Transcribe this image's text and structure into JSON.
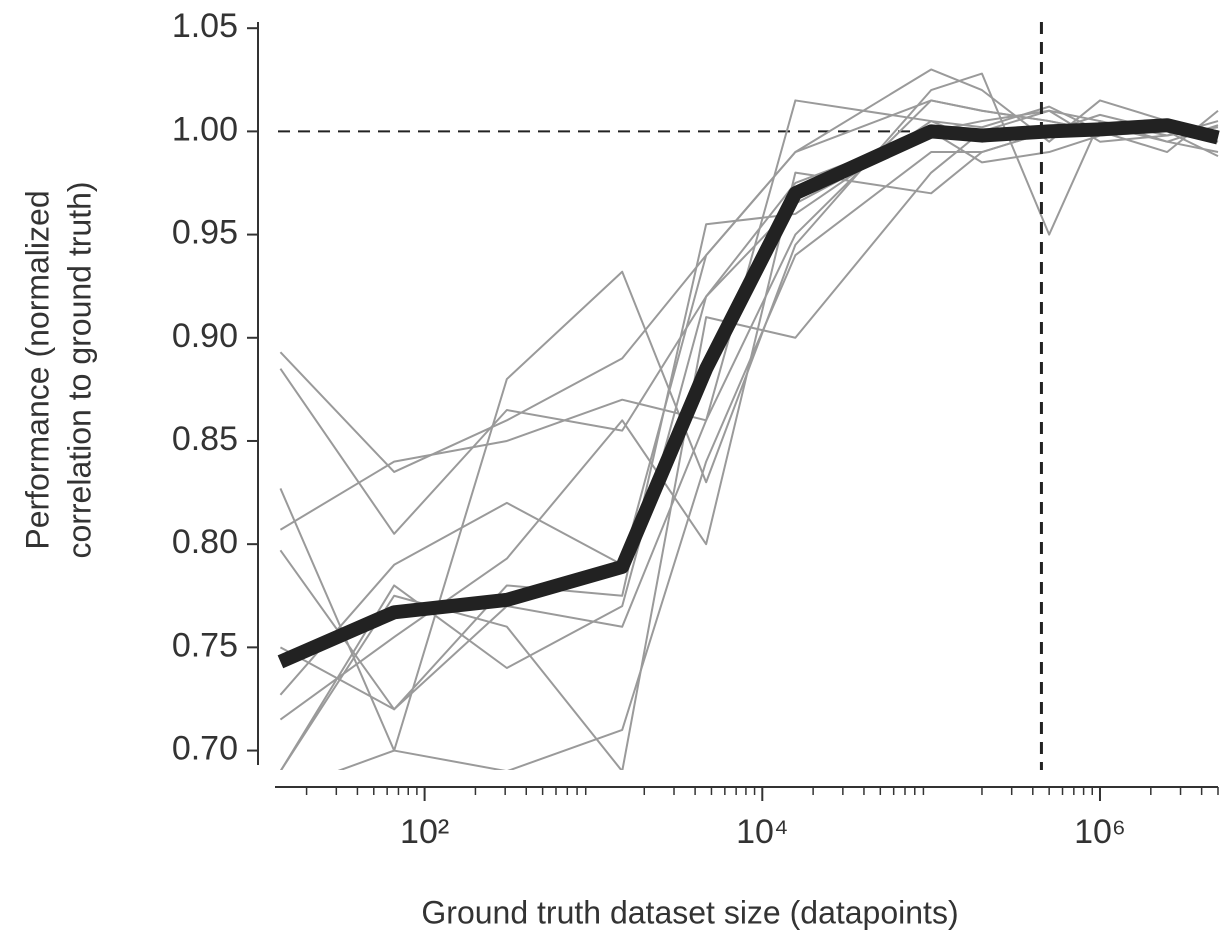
{
  "chart_data": {
    "type": "line",
    "xlabel": "Ground truth dataset size (datapoints)",
    "ylabel": [
      "Performance (normalized",
      "correlation to ground truth)"
    ],
    "xscale": "log",
    "x": [
      14,
      66,
      307,
      1480,
      4650,
      15700,
      100000,
      200000,
      500000,
      1000000,
      2500000,
      5000000
    ],
    "xlim": [
      13,
      5000000
    ],
    "ylim": [
      0.693,
      1.053
    ],
    "xticks": [
      {
        "value": 100,
        "label": "10²"
      },
      {
        "value": 10000,
        "label": "10⁴"
      },
      {
        "value": 1000000,
        "label": "10⁶"
      }
    ],
    "xminorticks": [
      20,
      30,
      40,
      50,
      60,
      70,
      80,
      90,
      200,
      300,
      400,
      500,
      600,
      700,
      800,
      900,
      2000,
      3000,
      4000,
      5000,
      6000,
      7000,
      8000,
      9000,
      20000,
      30000,
      40000,
      50000,
      60000,
      70000,
      80000,
      90000,
      200000,
      300000,
      400000,
      500000,
      600000,
      700000,
      800000,
      900000,
      2000000,
      3000000,
      4000000,
      5000000
    ],
    "yticks": [
      {
        "value": 0.7,
        "label": "0.70"
      },
      0.75,
      {
        "value": 0.8,
        "label": "0.80"
      },
      0.85,
      {
        "value": 0.9,
        "label": "0.90"
      },
      0.95,
      {
        "value": 1.0,
        "label": "1.00"
      },
      1.05
    ],
    "hline": 1.0,
    "vline": 450000,
    "series": [
      {
        "color": "#9a9a9a",
        "values": [
          0.893,
          0.835,
          0.86,
          0.89,
          0.94,
          0.99,
          1.015,
          1.01,
          1.005,
          1.0,
          1.002,
          0.995
        ]
      },
      {
        "color": "#9a9a9a",
        "values": [
          0.885,
          0.805,
          0.865,
          0.855,
          0.92,
          0.975,
          1.0,
          1.005,
          1.01,
          1.005,
          0.998,
          1.005
        ]
      },
      {
        "color": "#9a9a9a",
        "values": [
          0.827,
          0.7,
          0.88,
          0.932,
          0.83,
          0.945,
          1.02,
          1.028,
          0.95,
          1.005,
          0.995,
          0.99
        ]
      },
      {
        "color": "#9a9a9a",
        "values": [
          0.807,
          0.84,
          0.85,
          0.87,
          0.86,
          1.015,
          1.005,
          0.995,
          1.0,
          1.008,
          1.0,
          0.988
        ]
      },
      {
        "color": "#9a9a9a",
        "values": [
          0.797,
          0.72,
          0.78,
          0.775,
          0.955,
          0.96,
          1.005,
          1.002,
          1.012,
          1.0,
          0.99,
          1.01
        ]
      },
      {
        "color": "#9a9a9a",
        "values": [
          0.727,
          0.79,
          0.82,
          0.79,
          0.94,
          0.99,
          1.03,
          1.02,
          0.995,
          1.015,
          1.005,
          1.0
        ]
      },
      {
        "color": "#9a9a9a",
        "values": [
          0.715,
          0.755,
          0.793,
          0.86,
          0.8,
          0.98,
          0.97,
          0.99,
          1.0,
          1.003,
          0.995,
          1.003
        ]
      },
      {
        "color": "#9a9a9a",
        "values": [
          0.69,
          0.78,
          0.74,
          0.77,
          0.92,
          0.965,
          1.0,
          0.985,
          0.99,
          0.998,
          1.0,
          0.995
        ]
      },
      {
        "color": "#9a9a9a",
        "values": [
          0.68,
          0.7,
          0.69,
          0.71,
          0.84,
          0.94,
          0.99,
          0.99,
          1.0,
          1.002,
          1.005,
          1.0
        ]
      },
      {
        "color": "#9a9a9a",
        "values": [
          0.69,
          0.775,
          0.76,
          0.69,
          0.91,
          0.9,
          0.98,
          1.0,
          1.01,
          0.995,
          0.998,
          1.002
        ]
      },
      {
        "color": "#9a9a9a",
        "values": [
          0.75,
          0.72,
          0.77,
          0.76,
          0.86,
          0.95,
          1.015,
          1.01,
          1.005,
          1.0,
          1.003,
          0.998
        ]
      },
      {
        "color": "#222222",
        "width": 14,
        "values": [
          0.743,
          0.767,
          0.773,
          0.789,
          0.885,
          0.97,
          1.0,
          0.998,
          1.0,
          1.001,
          1.003,
          0.997
        ]
      }
    ]
  }
}
